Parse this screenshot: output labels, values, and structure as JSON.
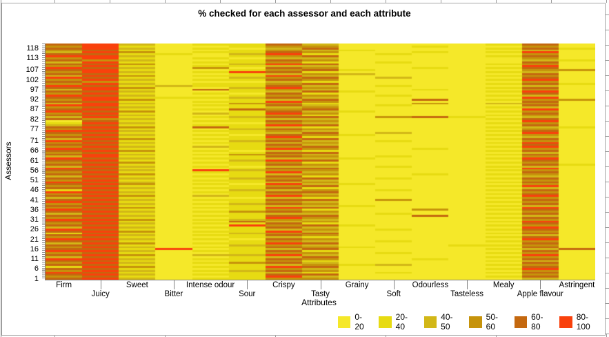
{
  "chart_data": {
    "type": "heatmap",
    "title": "% checked for each assessor and each attribute",
    "xlabel": "Attributes",
    "ylabel": "Assessors",
    "x_categories": [
      "Firm",
      "Juicy",
      "Sweet",
      "Bitter",
      "Intense odour",
      "Sour",
      "Crispy",
      "Tasty",
      "Grainy",
      "Soft",
      "Odourless",
      "Tasteless",
      "Mealy",
      "Apple flavour",
      "Astringent"
    ],
    "y_axis_tick_labels": [
      "118",
      "113",
      "107",
      "102",
      "97",
      "92",
      "87",
      "82",
      "77",
      "71",
      "66",
      "61",
      "56",
      "51",
      "46",
      "41",
      "36",
      "31",
      "26",
      "21",
      "16",
      "11",
      "6",
      "1"
    ],
    "y_num_rows": 120,
    "y_range": [
      1,
      120
    ],
    "legend": {
      "position": "bottom-right",
      "items": [
        {
          "label": "0-20",
          "color": "#F5E829"
        },
        {
          "label": "20-40",
          "color": "#E7DB12"
        },
        {
          "label": "40-50",
          "color": "#D2B717"
        },
        {
          "label": "50-60",
          "color": "#C6930B"
        },
        {
          "label": "60-80",
          "color": "#C4680F"
        },
        {
          "label": "80-100",
          "color": "#F9410C"
        }
      ]
    },
    "cell_buckets_rows_top_to_bottom": [
      "452011420000140",
      "351001330010030",
      "452010240000141",
      "341001321000020",
      "253011430010150",
      "441102510100030",
      "552001340000140",
      "351010220000030",
      "432001430000021",
      "251011310100040",
      "443002540000130",
      "351011220000050",
      "542030430010140",
      "451001341000033",
      "352015410000120",
      "441001232000040",
      "253011520000130",
      "541002340200040",
      "352011430000150",
      "431000210000030",
      "352011340000141",
      "541211420100020",
      "453002530000140",
      "251041320010030",
      "442001241000150",
      "351010410000040",
      "542001330100120",
      "451112420000050",
      "353001240040133",
      "441011530000040",
      "252003310030230",
      "551011420100040",
      "342001230000120",
      "451014340000050",
      "543001421000130",
      "351021530000040",
      "442001310000130",
      "251012440341020",
      "432001220000140",
      "041011430000050",
      "152000320000130",
      "241011540000040",
      "453041210000121",
      "341002430000030",
      "552011320000140",
      "441001240200050",
      "352010431000130",
      "441001510000020",
      "253011340000140",
      "541002420100030",
      "352011230000150",
      "441001420000040",
      "352021340000150",
      "541001530010030",
      "453010210000140",
      "341001440000020",
      "452013320000140",
      "251001430100030",
      "542011221000150",
      "451002540000040",
      "343011310000130",
      "451001430000041",
      "242010220100120",
      "551001440000050",
      "442052330000130",
      "351011520000040",
      "443001230010130",
      "251011410000020",
      "442002340100140",
      "351011420000030",
      "542001230000140",
      "453010521000030",
      "341001340000150",
      "452011410000020",
      "141002230100140",
      "552011440000030",
      "341001320000140",
      "453021530000050",
      "241000210000130",
      "452011440300040",
      "541001320000130",
      "352012430000040",
      "441001221000120",
      "353011540000050",
      "541001310030140",
      "452013430000030",
      "241001220100140",
      "452011440040020",
      "341001530000140",
      "553012320000030",
      "441004230000150",
      "352011410000040",
      "441005341000130",
      "252011420000050",
      "541001230100140",
      "453011520000030",
      "141002340000140",
      "452011430000020",
      "341001210000140",
      "552010430000050",
      "441001320100130",
      "253011540000040",
      "441002320001130",
      "352011431000040",
      "441501240000124",
      "552011410000040",
      "341001330100130",
      "453022520000050",
      "241001240000130",
      "552011430010040",
      "441001310000120",
      "352013420000040",
      "441001231200130",
      "153011540000040",
      "441001320000150",
      "352012430000030",
      "541001210100140",
      "452011440000030",
      "341001520000140",
      "452011330000020"
    ]
  }
}
